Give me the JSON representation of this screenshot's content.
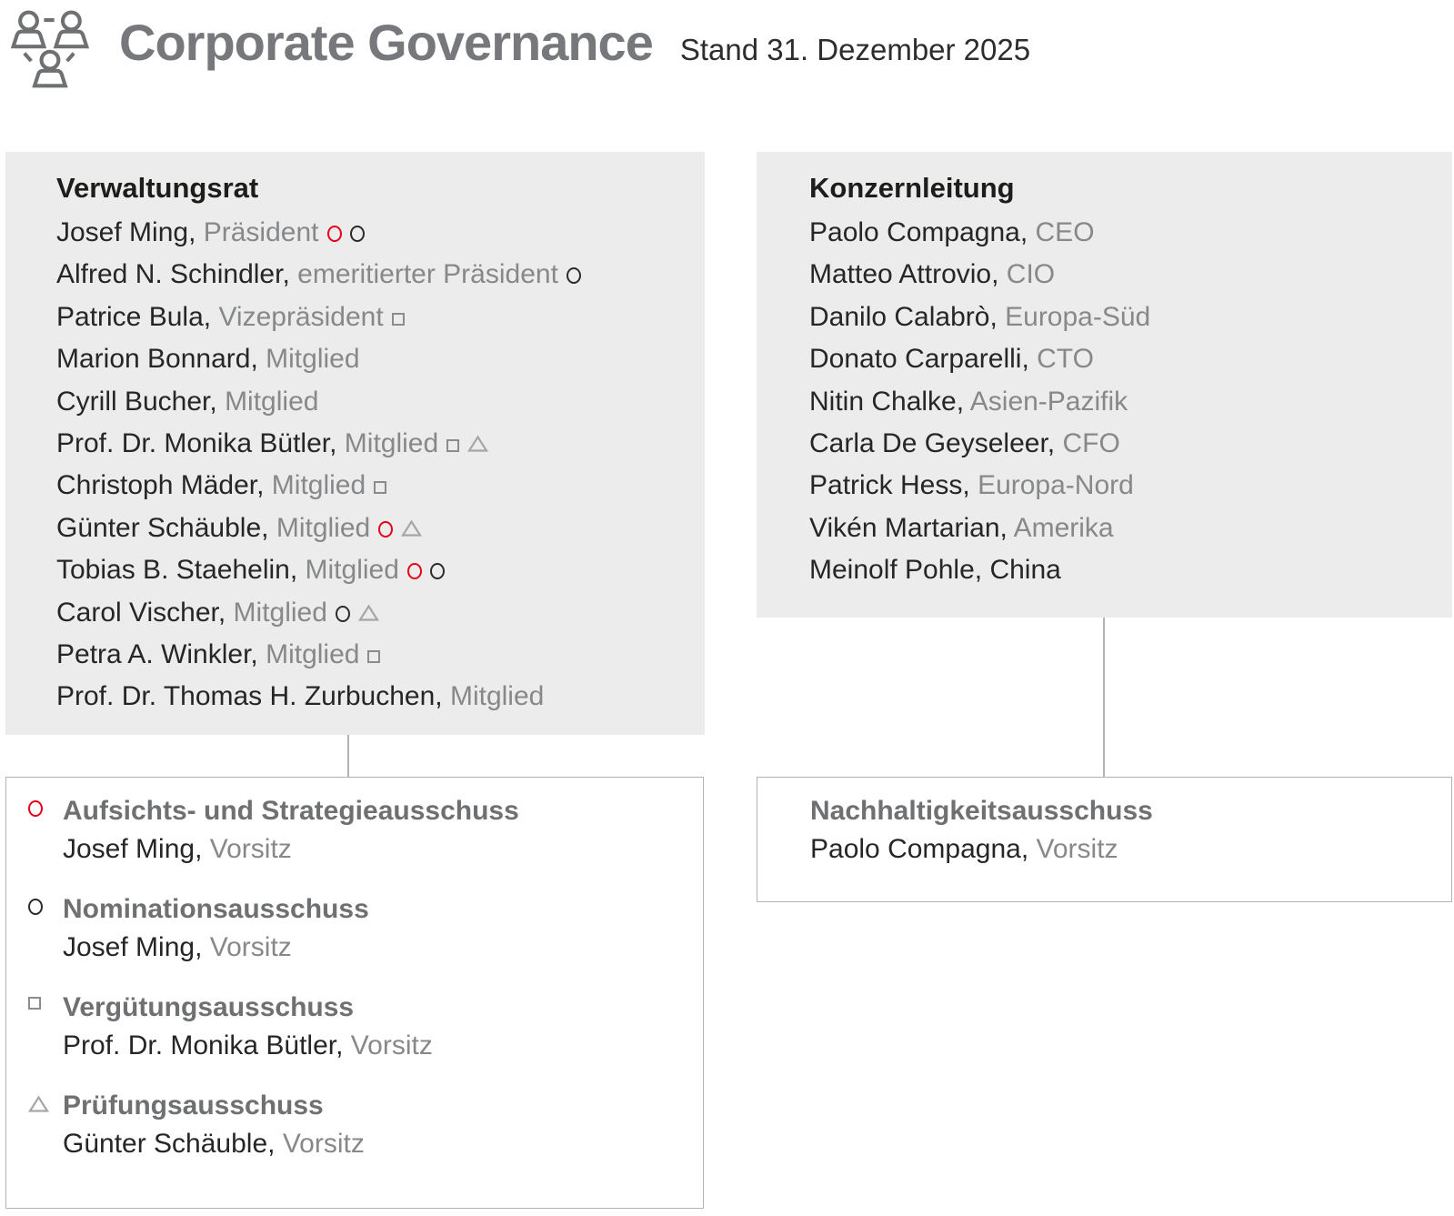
{
  "header": {
    "title": "Corporate Governance",
    "subtitle": "Stand 31. Dezember 2025"
  },
  "colors": {
    "red": "#e2001a",
    "text_dark": "#262626",
    "text_gray": "#87888a",
    "heading_dark": "#1d1d1b",
    "heading_gray": "#6f7072",
    "title_gray": "#77787b",
    "box_fill": "#ececec",
    "line": "#b3b3b3"
  },
  "verwaltungsrat": {
    "title": "Verwaltungsrat",
    "members": [
      {
        "name": "Josef Ming,",
        "role": "Präsident",
        "symbols": [
          "circle-red",
          "circle-black"
        ]
      },
      {
        "name": "Alfred N. Schindler,",
        "role": "emeritierter Präsident",
        "symbols": [
          "circle-black"
        ]
      },
      {
        "name": "Patrice Bula,",
        "role": "Vizepräsident",
        "symbols": [
          "square"
        ]
      },
      {
        "name": "Marion Bonnard,",
        "role": "Mitglied",
        "symbols": []
      },
      {
        "name": "Cyrill Bucher,",
        "role": "Mitglied",
        "symbols": []
      },
      {
        "name": "Prof. Dr. Monika Bütler,",
        "role": "Mitglied",
        "symbols": [
          "square",
          "triangle"
        ]
      },
      {
        "name": "Christoph Mäder,",
        "role": "Mitglied",
        "symbols": [
          "square"
        ]
      },
      {
        "name": "Günter Schäuble,",
        "role": "Mitglied",
        "symbols": [
          "circle-red",
          "triangle"
        ]
      },
      {
        "name": "Tobias B. Staehelin,",
        "role": "Mitglied",
        "symbols": [
          "circle-red",
          "circle-black"
        ]
      },
      {
        "name": "Carol Vischer,",
        "role": "Mitglied",
        "symbols": [
          "circle-black",
          "triangle"
        ]
      },
      {
        "name": "Petra A. Winkler,",
        "role": "Mitglied",
        "symbols": [
          "square"
        ]
      },
      {
        "name": "Prof. Dr. Thomas H. Zurbuchen,",
        "role": "Mitglied",
        "symbols": []
      }
    ]
  },
  "konzernleitung": {
    "title": "Konzernleitung",
    "members": [
      {
        "name": "Paolo Compagna,",
        "role": "CEO",
        "symbols": []
      },
      {
        "name": "Matteo Attrovio,",
        "role": "CIO",
        "symbols": []
      },
      {
        "name": "Danilo Calabrò,",
        "role": "Europa-Süd",
        "symbols": []
      },
      {
        "name": "Donato Carparelli,",
        "role": "CTO",
        "symbols": []
      },
      {
        "name": "Nitin Chalke,",
        "role": "Asien-Pazifik",
        "symbols": []
      },
      {
        "name": "Carla De Geyseleer,",
        "role": "CFO",
        "symbols": []
      },
      {
        "name": "Patrick Hess,",
        "role": "Europa-Nord",
        "symbols": []
      },
      {
        "name": "Vikén Martarian,",
        "role": "Amerika",
        "symbols": []
      },
      {
        "name": "Meinolf Pohle,",
        "role": "China",
        "role_dark": true,
        "symbols": []
      }
    ]
  },
  "committees_box": {
    "items": [
      {
        "symbols": [
          "circle-red"
        ],
        "title": "Aufsichts- und Strategieausschuss",
        "chair": "Josef Ming,",
        "chair_role": "Vorsitz"
      },
      {
        "symbols": [
          "circle-black"
        ],
        "title": "Nominationsausschuss",
        "chair": "Josef Ming,",
        "chair_role": "Vorsitz"
      },
      {
        "symbols": [
          "square"
        ],
        "title": "Vergütungsausschuss",
        "chair": "Prof. Dr. Monika Bütler,",
        "chair_role": "Vorsitz"
      },
      {
        "symbols": [
          "triangle"
        ],
        "title": "Prüfungsausschuss",
        "chair": "Günter Schäuble,",
        "chair_role": "Vorsitz"
      }
    ]
  },
  "sustainability_box": {
    "title": "Nachhaltigkeitsausschuss",
    "chair": "Paolo Compagna,",
    "chair_role": "Vorsitz"
  }
}
